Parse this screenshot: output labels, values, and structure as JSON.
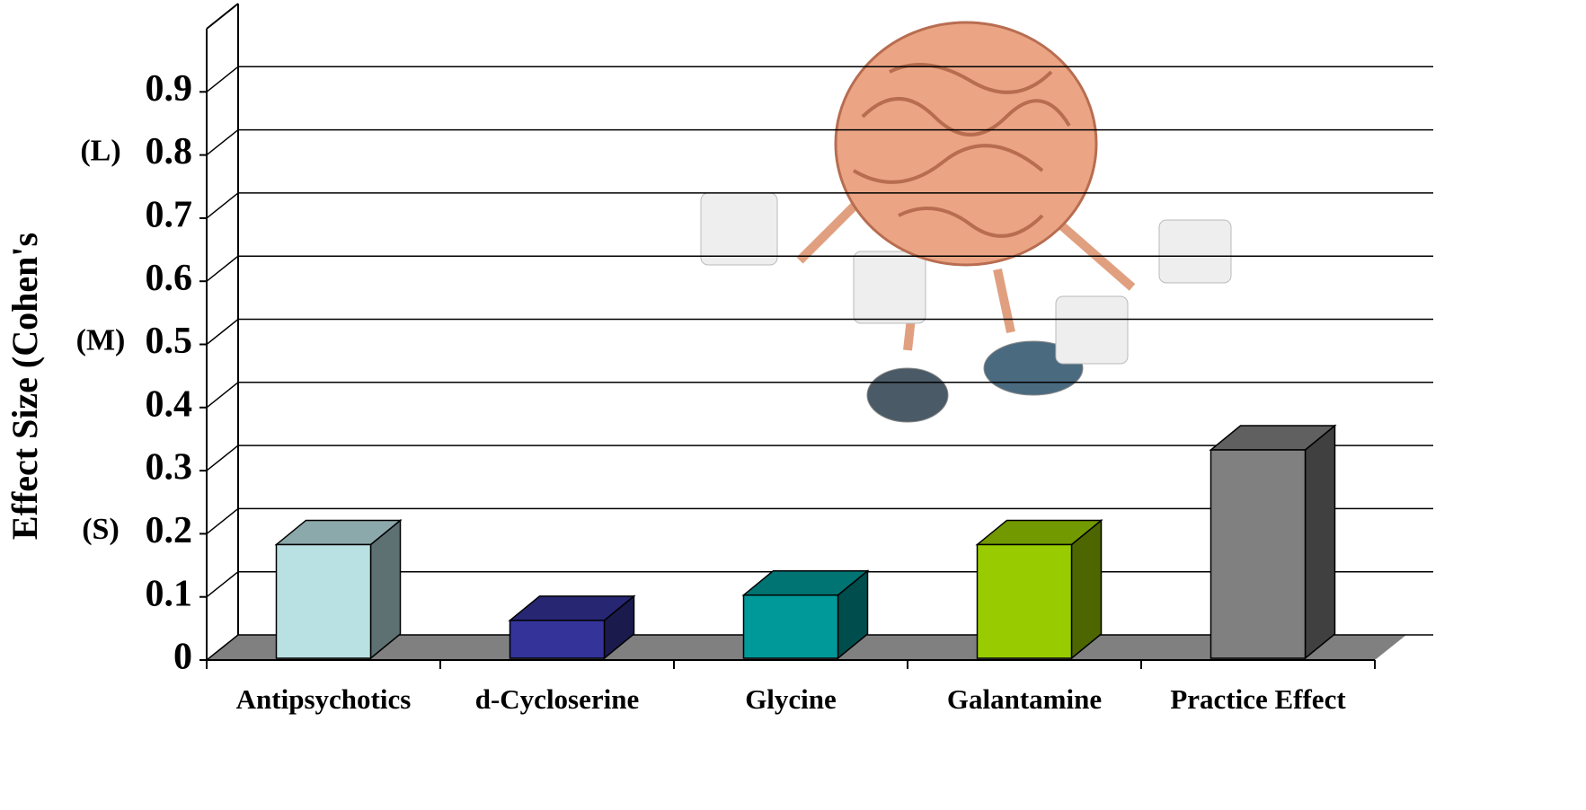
{
  "chart_data": {
    "type": "bar3d",
    "y_label": "Effect Size (Cohen's",
    "categories": [
      "Antipsychotics",
      "d-Cycloserine",
      "Glycine",
      "Galantamine",
      "Practice Effect"
    ],
    "values": [
      0.18,
      0.06,
      0.1,
      0.18,
      0.33
    ],
    "colors": [
      "#b9e0e3",
      "#333399",
      "#009999",
      "#99cc00",
      "#808080"
    ],
    "ylim": [
      0,
      1
    ],
    "yticks": [
      0,
      0.1,
      0.2,
      0.3,
      0.4,
      0.5,
      0.6,
      0.7,
      0.8,
      0.9
    ],
    "annotations": [
      {
        "text": "(L)",
        "value": 0.8
      },
      {
        "text": "(M)",
        "value": 0.5
      },
      {
        "text": "(S)",
        "value": 0.2
      }
    ],
    "grid": true
  }
}
